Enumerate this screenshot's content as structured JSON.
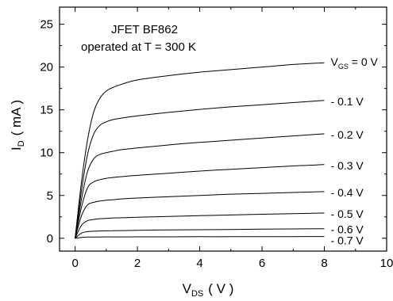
{
  "chart_data": {
    "type": "line",
    "title": "",
    "annotations": [
      "JFET    BF862",
      "operated at  T = 300 K"
    ],
    "xlabel": {
      "main": "V",
      "sub": "DS",
      "unit": "( V )"
    },
    "ylabel": {
      "main": "I",
      "sub": "D",
      "unit": "( mA )"
    },
    "xlim": [
      -0.5,
      10
    ],
    "ylim": [
      -1.5,
      27
    ],
    "x_ticks": [
      0,
      2,
      4,
      6,
      8,
      10
    ],
    "y_ticks": [
      0,
      5,
      10,
      15,
      20,
      25
    ],
    "grid": false,
    "series": [
      {
        "name": "0 V",
        "label_main": "V",
        "label_sub": "GS",
        "label_rest": " = 0 V",
        "x": [
          0,
          0.2,
          0.4,
          0.6,
          0.8,
          1,
          1.2,
          1.5,
          2,
          3,
          4,
          5,
          6,
          7,
          8
        ],
        "values": [
          0,
          6.5,
          11.5,
          14.8,
          16.4,
          17.2,
          17.6,
          18.0,
          18.5,
          19.0,
          19.4,
          19.7,
          20.0,
          20.3,
          20.5
        ]
      },
      {
        "name": "-0.1 V",
        "label_main": "",
        "label_sub": "",
        "label_rest": "- 0.1 V",
        "x": [
          0,
          0.2,
          0.4,
          0.6,
          0.8,
          1,
          1.2,
          1.5,
          2,
          3,
          4,
          5,
          6,
          7,
          8
        ],
        "values": [
          0,
          5.5,
          9.8,
          12.2,
          13.2,
          13.6,
          13.85,
          14.05,
          14.3,
          14.7,
          15.05,
          15.35,
          15.6,
          15.85,
          16.1
        ]
      },
      {
        "name": "-0.2 V",
        "label_main": "",
        "label_sub": "",
        "label_rest": "- 0.2 V",
        "x": [
          0,
          0.2,
          0.4,
          0.6,
          0.8,
          1,
          1.2,
          1.5,
          2,
          3,
          4,
          5,
          6,
          7,
          8
        ],
        "values": [
          0,
          4.5,
          7.8,
          9.3,
          9.8,
          10.0,
          10.15,
          10.35,
          10.55,
          10.9,
          11.2,
          11.45,
          11.7,
          11.95,
          12.2
        ]
      },
      {
        "name": "-0.3 V",
        "label_main": "",
        "label_sub": "",
        "label_rest": "- 0.3 V",
        "x": [
          0,
          0.2,
          0.4,
          0.6,
          0.8,
          1,
          1.2,
          1.5,
          2,
          3,
          4,
          5,
          6,
          7,
          8
        ],
        "values": [
          0,
          3.6,
          5.9,
          6.6,
          6.85,
          7.0,
          7.1,
          7.2,
          7.35,
          7.6,
          7.85,
          8.05,
          8.25,
          8.45,
          8.6
        ]
      },
      {
        "name": "-0.4 V",
        "label_main": "",
        "label_sub": "",
        "label_rest": "- 0.4 V",
        "x": [
          0,
          0.2,
          0.4,
          0.6,
          0.8,
          1,
          1.2,
          1.5,
          2,
          3,
          4,
          5,
          6,
          7,
          8
        ],
        "values": [
          0,
          2.6,
          3.9,
          4.2,
          4.35,
          4.45,
          4.5,
          4.6,
          4.7,
          4.85,
          5.0,
          5.15,
          5.25,
          5.35,
          5.45
        ]
      },
      {
        "name": "-0.5 V",
        "label_main": "",
        "label_sub": "",
        "label_rest": "- 0.5 V",
        "x": [
          0,
          0.2,
          0.4,
          0.6,
          0.8,
          1,
          1.2,
          1.5,
          2,
          3,
          4,
          5,
          6,
          7,
          8
        ],
        "values": [
          0,
          1.5,
          2.05,
          2.2,
          2.28,
          2.32,
          2.36,
          2.4,
          2.45,
          2.55,
          2.65,
          2.72,
          2.8,
          2.87,
          2.95
        ]
      },
      {
        "name": "-0.6 V",
        "label_main": "",
        "label_sub": "",
        "label_rest": "- 0.6 V",
        "x": [
          0,
          0.2,
          0.4,
          0.6,
          0.8,
          1,
          1.2,
          1.5,
          2,
          3,
          4,
          5,
          6,
          7,
          8
        ],
        "values": [
          0,
          0.6,
          0.78,
          0.82,
          0.85,
          0.87,
          0.89,
          0.9,
          0.93,
          0.97,
          1.0,
          1.03,
          1.06,
          1.09,
          1.12
        ]
      },
      {
        "name": "-0.7 V",
        "label_main": "",
        "label_sub": "",
        "label_rest": "- 0.7 V",
        "x": [
          0,
          0.2,
          0.4,
          0.6,
          0.8,
          1,
          1.2,
          1.5,
          2,
          3,
          4,
          5,
          6,
          7,
          8
        ],
        "values": [
          0,
          0.1,
          0.14,
          0.15,
          0.15,
          0.16,
          0.16,
          0.16,
          0.17,
          0.17,
          0.18,
          0.18,
          0.19,
          0.19,
          0.2
        ]
      }
    ]
  }
}
